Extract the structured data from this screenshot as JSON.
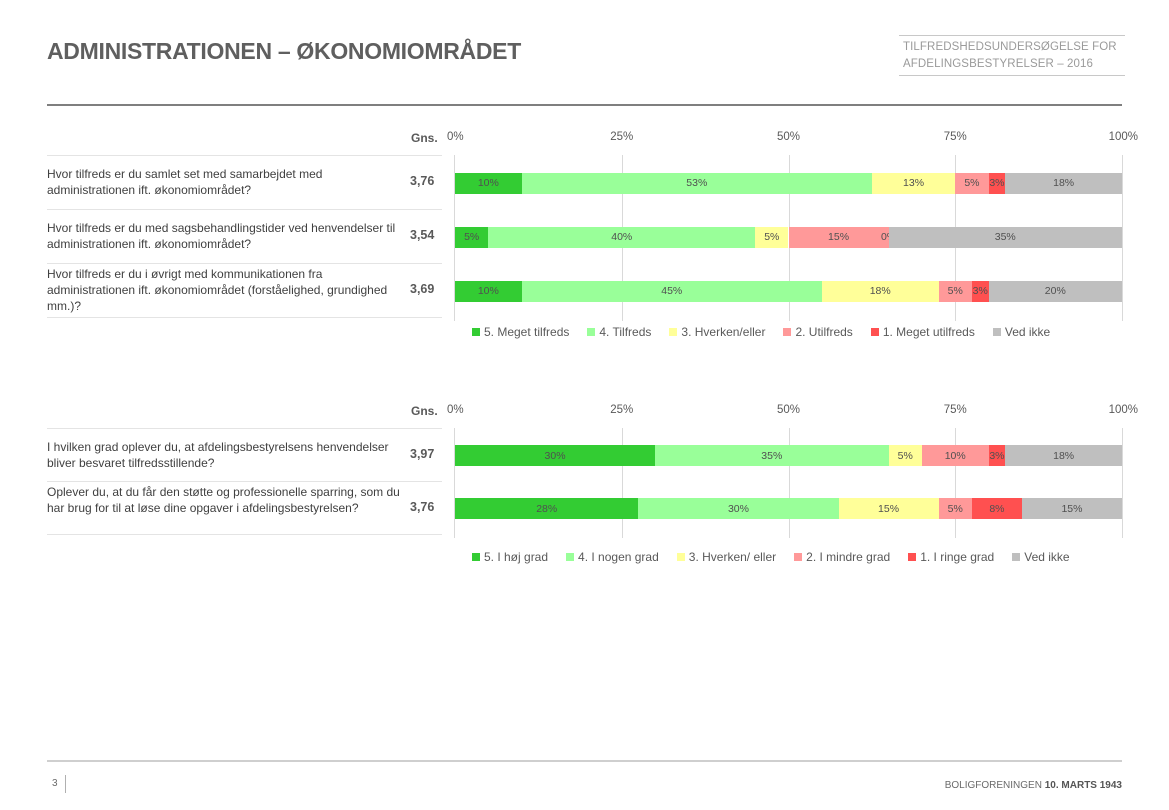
{
  "header": {
    "title": "ADMINISTRATIONEN – ØKONOMIOMRÅDET",
    "subtitle_line1": "TILFREDSHEDSUNDERSØGELSE FOR",
    "subtitle_line2": "AFDELINGSBESTYRELSER – 2016"
  },
  "footer": {
    "page_number": "3",
    "org_prefix": "BOLIGFORENINGEN",
    "org_name": "10. MARTS 1943"
  },
  "colors": {
    "cat5": "#33cc33",
    "cat4": "#99ff99",
    "cat3": "#ffff99",
    "cat2": "#ff9999",
    "cat1": "#ff5050",
    "ved_ikke": "#bfbfbf"
  },
  "chart_data": [
    {
      "type": "bar",
      "orientation": "horizontal-stacked-100",
      "title": "",
      "avg_header": "Gns.",
      "xlabel": "",
      "ylabel": "",
      "xlim": [
        0,
        100
      ],
      "x_ticks": [
        "0%",
        "25%",
        "50%",
        "75%",
        "100%"
      ],
      "grid": true,
      "legend_position": "bottom",
      "legend": [
        "5. Meget tilfreds",
        "4. Tilfreds",
        "3. Hverken/eller",
        "2. Utilfreds",
        "1. Meget utilfreds",
        "Ved ikke"
      ],
      "categories": [
        "Hvor tilfreds er du samlet set med samarbejdet med administrationen ift. økonomiområdet?",
        "Hvor tilfreds er du med sagsbehandlingstider ved henvendelser til administrationen ift. økonomiområdet?",
        "Hvor tilfreds er du i øvrigt med kommunikationen fra administrationen ift. økonomiområdet (forståelighed, grundighed mm.)?"
      ],
      "averages": [
        "3,76",
        "3,54",
        "3,69"
      ],
      "series": [
        {
          "name": "5. Meget tilfreds",
          "values": [
            10,
            5,
            10
          ],
          "labels": [
            "10%",
            "5%",
            "10%"
          ]
        },
        {
          "name": "4. Tilfreds",
          "values": [
            52.5,
            40,
            45
          ],
          "labels": [
            "53%",
            "40%",
            "45%"
          ]
        },
        {
          "name": "3. Hverken/eller",
          "values": [
            12.5,
            5,
            17.5
          ],
          "labels": [
            "13%",
            "5%",
            "18%"
          ]
        },
        {
          "name": "2. Utilfreds",
          "values": [
            5,
            15,
            5
          ],
          "labels": [
            "5%",
            "15%",
            "5%"
          ]
        },
        {
          "name": "1. Meget utilfreds",
          "values": [
            2.5,
            0,
            2.5
          ],
          "labels": [
            "3%",
            "0%",
            "3%"
          ]
        },
        {
          "name": "Ved ikke",
          "values": [
            17.5,
            35,
            20
          ],
          "labels": [
            "18%",
            "35%",
            "20%"
          ]
        }
      ]
    },
    {
      "type": "bar",
      "orientation": "horizontal-stacked-100",
      "title": "",
      "avg_header": "Gns.",
      "xlabel": "",
      "ylabel": "",
      "xlim": [
        0,
        100
      ],
      "x_ticks": [
        "0%",
        "25%",
        "50%",
        "75%",
        "100%"
      ],
      "grid": true,
      "legend_position": "bottom",
      "legend": [
        "5. I høj grad",
        "4. I nogen grad",
        "3. Hverken/ eller",
        "2. I mindre grad",
        "1. I ringe grad",
        "Ved ikke"
      ],
      "categories": [
        "I hvilken grad oplever du, at afdelingsbestyrelsens henvendelser bliver besvaret tilfredsstillende?",
        "Oplever du, at du får den støtte og professionelle sparring, som du har brug for til at løse dine opgaver i afdelingsbestyrelsen?"
      ],
      "averages": [
        "3,97",
        "3,76"
      ],
      "series": [
        {
          "name": "5. I høj grad",
          "values": [
            30,
            27.5
          ],
          "labels": [
            "30%",
            "28%"
          ]
        },
        {
          "name": "4. I nogen grad",
          "values": [
            35,
            30
          ],
          "labels": [
            "35%",
            "30%"
          ]
        },
        {
          "name": "3. Hverken/ eller",
          "values": [
            5,
            15
          ],
          "labels": [
            "5%",
            "15%"
          ]
        },
        {
          "name": "2. I mindre grad",
          "values": [
            10,
            5
          ],
          "labels": [
            "10%",
            "5%"
          ]
        },
        {
          "name": "1. I ringe grad",
          "values": [
            2.5,
            7.5
          ],
          "labels": [
            "3%",
            "8%"
          ]
        },
        {
          "name": "Ved ikke",
          "values": [
            17.5,
            15
          ],
          "labels": [
            "18%",
            "15%"
          ]
        }
      ]
    }
  ]
}
